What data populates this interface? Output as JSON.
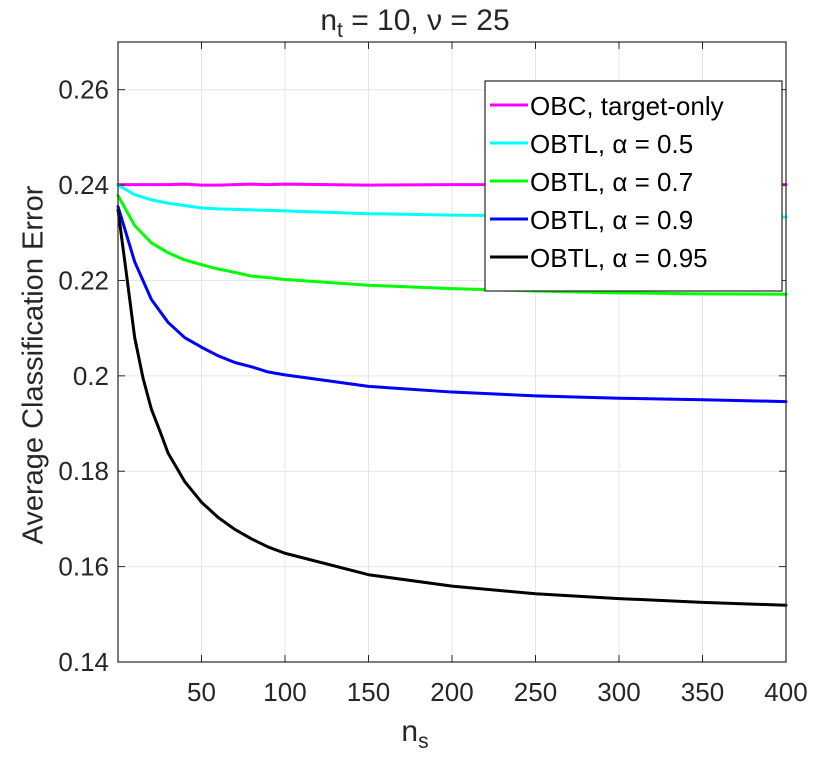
{
  "chart_data": {
    "type": "line",
    "title": {
      "main": "n",
      "sub": "t",
      "rest": " = 10, ν = 25"
    },
    "xlabel": {
      "main": "n",
      "sub": "s"
    },
    "ylabel": "Average Classification Error",
    "xlim": [
      0,
      400
    ],
    "ylim": [
      0.14,
      0.27
    ],
    "xticks": [
      50,
      100,
      150,
      200,
      250,
      300,
      350,
      400
    ],
    "yticks": [
      0.14,
      0.16,
      0.18,
      0.2,
      0.22,
      0.24,
      0.26
    ],
    "ytick_labels": [
      "0.14",
      "0.16",
      "0.18",
      "0.2",
      "0.22",
      "0.24",
      "0.26"
    ],
    "grid": true,
    "legend_position": "top-right",
    "series": [
      {
        "name": "OBC, target-only",
        "label_text": "OBC, target-only",
        "color": "#ff00ff",
        "x": [
          0,
          10,
          20,
          30,
          40,
          50,
          60,
          70,
          80,
          90,
          100,
          150,
          200,
          250,
          300,
          350,
          400
        ],
        "y": [
          0.2401,
          0.2401,
          0.2401,
          0.2401,
          0.2402,
          0.24,
          0.24,
          0.2401,
          0.2402,
          0.2401,
          0.2402,
          0.24,
          0.2401,
          0.2401,
          0.2401,
          0.24,
          0.2401
        ]
      },
      {
        "name": "OBTL, alpha = 0.5",
        "label_text": "OBTL, α = 0.5",
        "color": "#00ffff",
        "x": [
          0,
          10,
          20,
          30,
          40,
          50,
          60,
          70,
          80,
          90,
          100,
          150,
          200,
          250,
          300,
          350,
          400
        ],
        "y": [
          0.24,
          0.238,
          0.2369,
          0.2362,
          0.2357,
          0.2352,
          0.235,
          0.2349,
          0.2348,
          0.2347,
          0.2346,
          0.234,
          0.2337,
          0.2336,
          0.2335,
          0.2334,
          0.2333
        ]
      },
      {
        "name": "OBTL, alpha = 0.7",
        "label_text": "OBTL, α = 0.7",
        "color": "#00ff00",
        "x": [
          0,
          10,
          20,
          30,
          40,
          50,
          60,
          70,
          80,
          90,
          100,
          150,
          200,
          250,
          300,
          350,
          400
        ],
        "y": [
          0.2378,
          0.2315,
          0.2279,
          0.2258,
          0.2243,
          0.2233,
          0.2224,
          0.2217,
          0.2209,
          0.2206,
          0.2202,
          0.219,
          0.2183,
          0.2178,
          0.2174,
          0.2172,
          0.2171
        ]
      },
      {
        "name": "OBTL, alpha = 0.9",
        "label_text": "OBTL, α = 0.9",
        "color": "#0000ff",
        "x": [
          0,
          10,
          20,
          30,
          40,
          50,
          60,
          70,
          80,
          90,
          100,
          150,
          200,
          250,
          300,
          350,
          400
        ],
        "y": [
          0.2355,
          0.2239,
          0.216,
          0.2112,
          0.208,
          0.206,
          0.2042,
          0.2028,
          0.2019,
          0.2008,
          0.2002,
          0.1978,
          0.1966,
          0.1958,
          0.1953,
          0.195,
          0.1946
        ]
      },
      {
        "name": "OBTL, alpha = 0.95",
        "label_text": "OBTL, α = 0.95",
        "color": "#000000",
        "x": [
          0,
          5,
          10,
          15,
          20,
          25,
          30,
          35,
          40,
          50,
          60,
          70,
          80,
          90,
          100,
          150,
          200,
          250,
          300,
          350,
          400
        ],
        "y": [
          0.2348,
          0.2215,
          0.208,
          0.1995,
          0.193,
          0.1885,
          0.1838,
          0.1808,
          0.1778,
          0.1735,
          0.1703,
          0.1678,
          0.1658,
          0.1641,
          0.1628,
          0.1583,
          0.1559,
          0.1543,
          0.1533,
          0.1525,
          0.1519
        ]
      }
    ]
  }
}
